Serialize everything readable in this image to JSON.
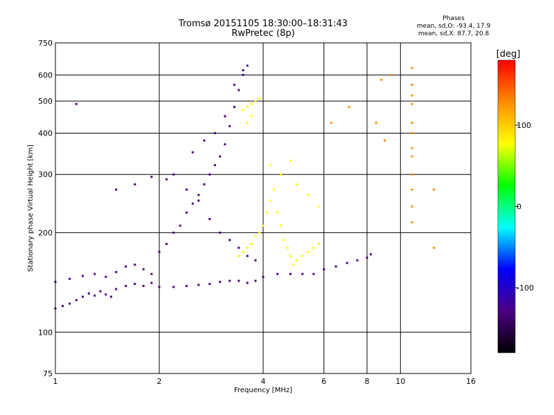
{
  "chart_data": {
    "type": "scatter",
    "title": "Tromsø 20151105 18:30:00–18:31:43",
    "subtitle": "RwPretec (8p)",
    "stats": {
      "heading": "Phases",
      "o_mode": "mean, sd,O: -93.4, 17.9",
      "x_mode": "mean, sd,X: 87.7, 20.8"
    },
    "xlabel": "Frequency [MHz]",
    "ylabel": "Stationary phase Virtual Height [km]",
    "x_scale": "log",
    "y_scale": "log",
    "xlim": [
      1,
      16
    ],
    "ylim": [
      75,
      750
    ],
    "x_ticks": [
      1,
      2,
      4,
      6,
      8,
      10,
      16
    ],
    "x_tick_labels": [
      "1",
      "2",
      "4",
      "6",
      "8",
      "10",
      "16"
    ],
    "y_ticks": [
      75,
      100,
      200,
      300,
      400,
      500,
      600,
      750
    ],
    "y_tick_labels": [
      "75",
      "100",
      "200",
      "300",
      "400",
      "500",
      "600",
      "750"
    ],
    "grid": true,
    "colorbar": {
      "label": "[deg]",
      "range": [
        -180,
        180
      ],
      "ticks": [
        100,
        0,
        -100
      ],
      "tick_labels": [
        "100",
        "0",
        "-100"
      ],
      "colors": [
        "#000000",
        "#4b0082",
        "#0000ff",
        "#00ffff",
        "#00ff00",
        "#ffff00",
        "#ff8c00",
        "#ff0000"
      ]
    },
    "series": [
      {
        "points": [
          [
            1.0,
            118
          ],
          [
            1.05,
            120
          ],
          [
            1.1,
            122
          ],
          [
            1.15,
            125
          ],
          [
            1.2,
            128
          ],
          [
            1.25,
            131
          ],
          [
            1.3,
            129
          ],
          [
            1.35,
            133
          ],
          [
            1.4,
            130
          ],
          [
            1.45,
            128
          ],
          [
            1.5,
            135
          ],
          [
            1.6,
            138
          ],
          [
            1.7,
            140
          ],
          [
            1.8,
            138
          ],
          [
            1.9,
            141
          ],
          [
            2.0,
            137
          ],
          [
            2.2,
            137
          ],
          [
            2.4,
            138
          ],
          [
            2.6,
            139
          ],
          [
            2.8,
            140
          ],
          [
            3.0,
            142
          ],
          [
            3.2,
            143
          ],
          [
            3.4,
            143
          ],
          [
            3.6,
            141
          ],
          [
            3.8,
            143
          ],
          [
            4.0,
            147
          ],
          [
            4.4,
            150
          ],
          [
            4.8,
            150
          ],
          [
            5.2,
            150
          ],
          [
            5.6,
            150
          ],
          [
            6.0,
            155
          ],
          [
            6.5,
            158
          ],
          [
            7.0,
            162
          ],
          [
            7.5,
            165
          ],
          [
            8.0,
            168
          ],
          [
            8.2,
            172
          ]
        ],
        "phase": -110
      },
      {
        "points": [
          [
            1.0,
            142
          ],
          [
            1.1,
            145
          ],
          [
            1.2,
            148
          ],
          [
            1.3,
            150
          ],
          [
            1.4,
            147
          ],
          [
            1.5,
            152
          ],
          [
            1.6,
            158
          ],
          [
            1.7,
            160
          ],
          [
            1.8,
            155
          ],
          [
            1.9,
            150
          ],
          [
            2.0,
            175
          ],
          [
            2.1,
            185
          ],
          [
            2.2,
            200
          ],
          [
            2.3,
            210
          ],
          [
            2.4,
            230
          ],
          [
            2.5,
            245
          ],
          [
            2.6,
            260
          ],
          [
            2.7,
            280
          ],
          [
            2.8,
            300
          ],
          [
            2.9,
            320
          ],
          [
            3.0,
            340
          ],
          [
            3.1,
            370
          ],
          [
            3.2,
            420
          ],
          [
            3.3,
            480
          ],
          [
            3.4,
            540
          ],
          [
            3.5,
            600
          ],
          [
            3.6,
            640
          ],
          [
            1.5,
            270
          ],
          [
            1.7,
            280
          ],
          [
            1.9,
            295
          ],
          [
            2.1,
            290
          ],
          [
            2.2,
            300
          ],
          [
            2.4,
            270
          ],
          [
            2.6,
            250
          ],
          [
            2.8,
            220
          ],
          [
            3.0,
            200
          ],
          [
            3.2,
            190
          ],
          [
            3.4,
            180
          ],
          [
            3.6,
            170
          ],
          [
            3.8,
            165
          ],
          [
            2.5,
            350
          ],
          [
            2.7,
            380
          ],
          [
            2.9,
            400
          ],
          [
            3.1,
            450
          ],
          [
            3.3,
            560
          ],
          [
            3.5,
            620
          ],
          [
            1.15,
            490
          ]
        ],
        "phase": -120
      },
      {
        "points": [
          [
            3.4,
            170
          ],
          [
            3.5,
            175
          ],
          [
            3.6,
            180
          ],
          [
            3.7,
            185
          ],
          [
            3.8,
            195
          ],
          [
            3.9,
            200
          ],
          [
            4.0,
            210
          ],
          [
            4.1,
            230
          ],
          [
            4.2,
            250
          ],
          [
            4.3,
            270
          ],
          [
            4.4,
            230
          ],
          [
            4.5,
            210
          ],
          [
            4.6,
            190
          ],
          [
            4.7,
            180
          ],
          [
            4.8,
            170
          ],
          [
            4.9,
            160
          ],
          [
            5.0,
            165
          ],
          [
            5.2,
            170
          ],
          [
            5.4,
            175
          ],
          [
            5.6,
            180
          ],
          [
            5.8,
            185
          ],
          [
            3.5,
            470
          ],
          [
            3.6,
            480
          ],
          [
            3.7,
            490
          ],
          [
            3.8,
            500
          ],
          [
            3.9,
            510
          ],
          [
            3.6,
            430
          ],
          [
            3.7,
            450
          ],
          [
            4.5,
            300
          ],
          [
            5.0,
            280
          ],
          [
            5.4,
            260
          ],
          [
            5.8,
            240
          ],
          [
            4.2,
            320
          ],
          [
            4.8,
            330
          ]
        ],
        "phase": 100
      },
      {
        "points": [
          [
            10.8,
            630
          ],
          [
            10.8,
            560
          ],
          [
            10.8,
            520
          ],
          [
            10.8,
            490
          ],
          [
            10.8,
            430
          ],
          [
            10.8,
            400
          ],
          [
            10.8,
            360
          ],
          [
            10.8,
            340
          ],
          [
            10.8,
            300
          ],
          [
            10.8,
            270
          ],
          [
            10.8,
            240
          ],
          [
            10.8,
            215
          ],
          [
            12.5,
            270
          ],
          [
            12.5,
            180
          ],
          [
            9.4,
            600
          ],
          [
            8.8,
            580
          ],
          [
            8.5,
            430
          ],
          [
            9.0,
            380
          ],
          [
            7.1,
            480
          ],
          [
            6.3,
            430
          ]
        ],
        "phase": 120
      }
    ]
  }
}
